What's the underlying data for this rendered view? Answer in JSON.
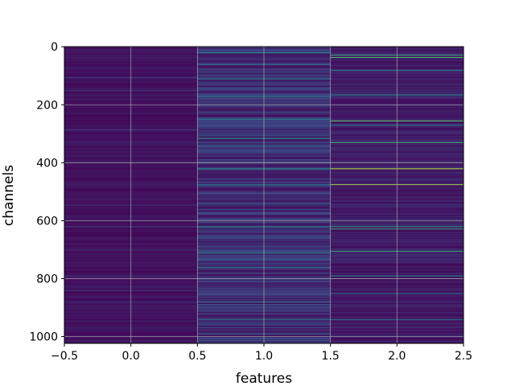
{
  "chart_data": {
    "type": "heatmap",
    "title": "",
    "xlabel": "features",
    "ylabel": "channels",
    "xlim": [
      -0.5,
      2.5
    ],
    "ylim": [
      1023.5,
      -0.5
    ],
    "x_ticks": [
      "−0.5",
      "0.0",
      "0.5",
      "1.0",
      "1.5",
      "2.0",
      "2.5"
    ],
    "y_ticks": [
      "0",
      "200",
      "400",
      "600",
      "800",
      "1000"
    ],
    "x_tick_values": [
      -0.5,
      0.0,
      0.5,
      1.0,
      1.5,
      2.0,
      2.5
    ],
    "y_tick_values": [
      0,
      200,
      400,
      600,
      800,
      1000
    ],
    "grid": true,
    "colormap": "viridis",
    "n_channels": 1024,
    "n_features": 3,
    "columns": [
      {
        "feature": 0,
        "base_level": 0.05,
        "highlights": [
          {
            "channel": 105,
            "level": 0.18
          },
          {
            "channel": 150,
            "level": 0.15
          },
          {
            "channel": 286,
            "level": 0.2
          },
          {
            "channel": 330,
            "level": 0.14
          },
          {
            "channel": 545,
            "level": 0.16
          },
          {
            "channel": 620,
            "level": 0.2
          },
          {
            "channel": 700,
            "level": 0.15
          },
          {
            "channel": 790,
            "level": 0.17
          },
          {
            "channel": 840,
            "level": 0.15
          },
          {
            "channel": 880,
            "level": 0.16
          }
        ]
      },
      {
        "feature": 1,
        "base_level": 0.14,
        "highlights": [
          {
            "channel": 20,
            "level": 0.5
          },
          {
            "channel": 60,
            "level": 0.35
          },
          {
            "channel": 110,
            "level": 0.4
          },
          {
            "channel": 170,
            "level": 0.48
          },
          {
            "channel": 250,
            "level": 0.42
          },
          {
            "channel": 315,
            "level": 0.5
          },
          {
            "channel": 340,
            "level": 0.38
          },
          {
            "channel": 420,
            "level": 0.5
          },
          {
            "channel": 475,
            "level": 0.45
          },
          {
            "channel": 540,
            "level": 0.35
          },
          {
            "channel": 620,
            "level": 0.5
          },
          {
            "channel": 710,
            "level": 0.5
          },
          {
            "channel": 760,
            "level": 0.38
          },
          {
            "channel": 880,
            "level": 0.45
          },
          {
            "channel": 940,
            "level": 0.4
          },
          {
            "channel": 990,
            "level": 0.36
          }
        ]
      },
      {
        "feature": 2,
        "base_level": 0.08,
        "highlights": [
          {
            "channel": 28,
            "level": 0.6
          },
          {
            "channel": 36,
            "level": 0.7
          },
          {
            "channel": 80,
            "level": 0.45
          },
          {
            "channel": 165,
            "level": 0.5
          },
          {
            "channel": 255,
            "level": 0.75
          },
          {
            "channel": 270,
            "level": 0.45
          },
          {
            "channel": 330,
            "level": 0.65
          },
          {
            "channel": 420,
            "level": 0.9
          },
          {
            "channel": 475,
            "level": 0.85
          },
          {
            "channel": 620,
            "level": 0.55
          },
          {
            "channel": 628,
            "level": 0.6
          },
          {
            "channel": 705,
            "level": 0.6
          },
          {
            "channel": 790,
            "level": 0.45
          },
          {
            "channel": 850,
            "level": 0.35
          },
          {
            "channel": 940,
            "level": 0.4
          }
        ]
      }
    ]
  }
}
